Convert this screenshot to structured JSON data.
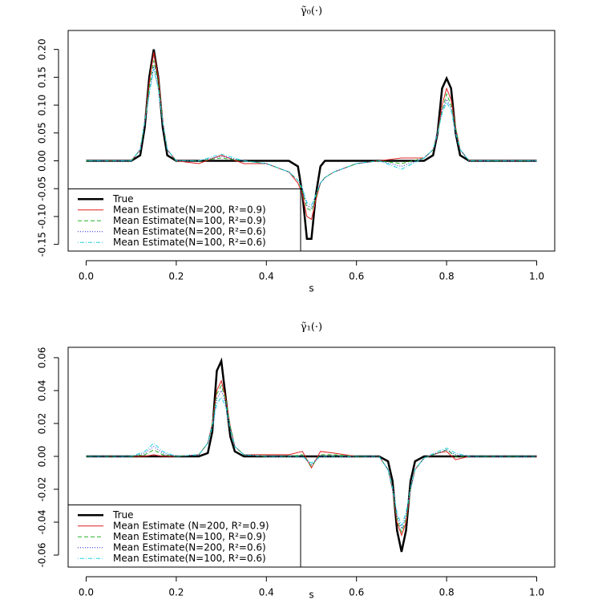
{
  "chart_data": [
    {
      "type": "line",
      "title": "γ̃₀(·)",
      "x_label": "s",
      "x": [
        0,
        0.05,
        0.1,
        0.12,
        0.13,
        0.14,
        0.15,
        0.16,
        0.17,
        0.18,
        0.2,
        0.25,
        0.3,
        0.35,
        0.4,
        0.45,
        0.47,
        0.48,
        0.49,
        0.5,
        0.51,
        0.52,
        0.53,
        0.55,
        0.6,
        0.65,
        0.7,
        0.75,
        0.77,
        0.78,
        0.79,
        0.8,
        0.81,
        0.82,
        0.83,
        0.85,
        0.9,
        0.95,
        1.0
      ],
      "xlim": [
        -0.04,
        1.04
      ],
      "xticks": [
        {
          "value": 0,
          "label": "0.0"
        },
        0.2,
        0.4,
        0.6,
        0.8,
        {
          "value": 1,
          "label": "1.0"
        }
      ],
      "ylim": [
        -0.162,
        0.234
      ],
      "yticks": [
        -0.15,
        {
          "value": -0.1,
          "label": "-0.10"
        },
        -0.05,
        {
          "value": 0,
          "label": "0.00"
        },
        0.05,
        {
          "value": 0.1,
          "label": "0.10"
        },
        0.15,
        {
          "value": 0.2,
          "label": "0.20"
        }
      ],
      "legend": "bottomleft",
      "series": [
        {
          "name": "True",
          "color": "#000000",
          "width": 2.5,
          "dash": "none",
          "values": [
            0,
            0,
            0,
            0.01,
            0.06,
            0.15,
            0.2,
            0.15,
            0.06,
            0.01,
            0,
            0,
            0,
            0,
            0,
            0,
            -0.01,
            -0.06,
            -0.14,
            -0.14,
            -0.06,
            -0.01,
            0,
            0,
            0,
            0,
            0,
            0,
            0.01,
            0.05,
            0.13,
            0.148,
            0.13,
            0.05,
            0.01,
            0,
            0,
            0,
            0
          ]
        },
        {
          "name": "Mean Estimate(N=200, R²=0.9)",
          "color": "#df2020",
          "width": 1,
          "dash": "none",
          "values": [
            0,
            0,
            0,
            0.02,
            0.07,
            0.14,
            0.195,
            0.15,
            0.07,
            0.02,
            0,
            -0.005,
            0.01,
            -0.005,
            -0.005,
            -0.02,
            -0.04,
            -0.06,
            -0.1,
            -0.105,
            -0.07,
            -0.04,
            -0.03,
            -0.02,
            -0.005,
            0,
            0.005,
            0.005,
            0.02,
            0.05,
            0.1,
            0.13,
            0.11,
            0.06,
            0.02,
            0,
            0,
            0,
            0
          ]
        },
        {
          "name": "Mean Estimate(N=100, R²=0.9)",
          "color": "#22b022",
          "width": 1,
          "dash": "5,3",
          "values": [
            0,
            0,
            0,
            0.02,
            0.07,
            0.13,
            0.18,
            0.14,
            0.07,
            0.02,
            0,
            0,
            0.005,
            0,
            -0.005,
            -0.02,
            -0.035,
            -0.055,
            -0.085,
            -0.09,
            -0.065,
            -0.04,
            -0.03,
            -0.02,
            -0.005,
            0,
            -0.005,
            0.005,
            0.02,
            0.05,
            0.09,
            0.12,
            0.1,
            0.06,
            0.02,
            0,
            0,
            0,
            0
          ]
        },
        {
          "name": "Mean Estimate(N=200, R²=0.6)",
          "color": "#2020d0",
          "width": 1,
          "dash": "1,2",
          "values": [
            0,
            0,
            0,
            0.02,
            0.07,
            0.12,
            0.17,
            0.13,
            0.07,
            0.02,
            0,
            0,
            0.008,
            0,
            -0.005,
            -0.02,
            -0.035,
            -0.05,
            -0.08,
            -0.085,
            -0.06,
            -0.04,
            -0.03,
            -0.02,
            -0.005,
            0,
            -0.01,
            0.005,
            0.02,
            0.05,
            0.09,
            0.11,
            0.095,
            0.055,
            0.02,
            0,
            0,
            0,
            0
          ]
        },
        {
          "name": "Mean Estimate(N=100, R²=0.6)",
          "color": "#20d0e0",
          "width": 1,
          "dash": "1,2,5,2",
          "values": [
            0,
            0,
            0,
            0.02,
            0.07,
            0.12,
            0.165,
            0.13,
            0.07,
            0.02,
            0,
            0,
            0.012,
            0,
            -0.005,
            -0.02,
            -0.035,
            -0.05,
            -0.075,
            -0.08,
            -0.06,
            -0.04,
            -0.03,
            -0.02,
            -0.005,
            0,
            -0.015,
            0.005,
            0.02,
            0.05,
            0.085,
            0.105,
            0.09,
            0.05,
            0.02,
            0,
            0,
            0,
            0
          ]
        }
      ]
    },
    {
      "type": "line",
      "title": "γ̃₁(·)",
      "x_label": "s",
      "x": [
        0,
        0.05,
        0.1,
        0.13,
        0.15,
        0.17,
        0.2,
        0.25,
        0.27,
        0.28,
        0.29,
        0.3,
        0.31,
        0.32,
        0.33,
        0.35,
        0.4,
        0.45,
        0.48,
        0.5,
        0.52,
        0.55,
        0.6,
        0.65,
        0.67,
        0.68,
        0.69,
        0.7,
        0.71,
        0.72,
        0.73,
        0.75,
        0.78,
        0.8,
        0.82,
        0.85,
        0.9,
        0.95,
        1.0
      ],
      "xlim": [
        -0.04,
        1.04
      ],
      "xticks": [
        {
          "value": 0,
          "label": "0.0"
        },
        0.2,
        0.4,
        0.6,
        0.8,
        {
          "value": 1,
          "label": "1.0"
        }
      ],
      "ylim": [
        -0.0673,
        0.0663
      ],
      "yticks": [
        -0.06,
        -0.04,
        -0.02,
        {
          "value": 0,
          "label": "0.00"
        },
        0.02,
        0.04,
        0.06
      ],
      "legend": "bottomleft",
      "series": [
        {
          "name": "True",
          "color": "#000000",
          "width": 2.5,
          "dash": "none",
          "values": [
            0,
            0,
            0,
            0,
            0,
            0,
            0,
            0,
            0.002,
            0.015,
            0.052,
            0.058,
            0.035,
            0.012,
            0.003,
            0,
            0,
            0,
            0,
            0,
            0,
            0,
            0,
            0,
            -0.003,
            -0.015,
            -0.045,
            -0.058,
            -0.045,
            -0.015,
            -0.003,
            0,
            0,
            0,
            0,
            0,
            0,
            0,
            0
          ]
        },
        {
          "name": "Mean Estimate (N=200, R²=0.9)",
          "color": "#df2020",
          "width": 1,
          "dash": "none",
          "values": [
            0,
            0,
            0,
            0,
            0.001,
            0,
            0,
            0.001,
            0.008,
            0.02,
            0.04,
            0.046,
            0.035,
            0.018,
            0.006,
            0.001,
            0.001,
            0.001,
            0.003,
            -0.007,
            0.003,
            0.002,
            0,
            0,
            -0.008,
            -0.02,
            -0.04,
            -0.048,
            -0.04,
            -0.02,
            -0.008,
            -0.001,
            0.002,
            0.003,
            -0.002,
            0,
            0,
            0,
            0
          ]
        },
        {
          "name": "Mean Estimate(N=100, R²=0.9)",
          "color": "#22b022",
          "width": 1,
          "dash": "5,3",
          "values": [
            0,
            0,
            0,
            0.001,
            0.004,
            0.001,
            0,
            0.001,
            0.008,
            0.02,
            0.038,
            0.043,
            0.034,
            0.018,
            0.006,
            0.001,
            0,
            0,
            0.001,
            -0.006,
            0.001,
            0.001,
            0,
            0,
            -0.008,
            -0.02,
            -0.038,
            -0.046,
            -0.038,
            -0.02,
            -0.008,
            -0.001,
            0.002,
            0.004,
            0,
            0,
            0,
            0,
            0
          ]
        },
        {
          "name": "Mean Estimate(N=200, R²=0.6)",
          "color": "#2020d0",
          "width": 1,
          "dash": "1,2",
          "values": [
            0,
            0,
            0,
            0.002,
            0.006,
            0.002,
            0,
            0.001,
            0.008,
            0.019,
            0.035,
            0.04,
            0.032,
            0.017,
            0.006,
            0.001,
            0,
            0,
            0,
            -0.005,
            0,
            0,
            0,
            0,
            -0.008,
            -0.02,
            -0.036,
            -0.044,
            -0.036,
            -0.02,
            -0.008,
            -0.001,
            0.002,
            0.004,
            0.001,
            0,
            0,
            0,
            0
          ]
        },
        {
          "name": "Mean Estimate(N=100, R²=0.6)",
          "color": "#20d0e0",
          "width": 1,
          "dash": "1,2,5,2",
          "values": [
            0,
            0,
            0,
            0.003,
            0.008,
            0.003,
            0,
            0.001,
            0.008,
            0.018,
            0.032,
            0.036,
            0.03,
            0.016,
            0.006,
            0.001,
            0,
            0,
            0,
            -0.004,
            0,
            0,
            0,
            0,
            -0.008,
            -0.019,
            -0.034,
            -0.042,
            -0.034,
            -0.019,
            -0.008,
            -0.001,
            0.003,
            0.005,
            0.002,
            0,
            0,
            0,
            0
          ]
        }
      ]
    }
  ]
}
